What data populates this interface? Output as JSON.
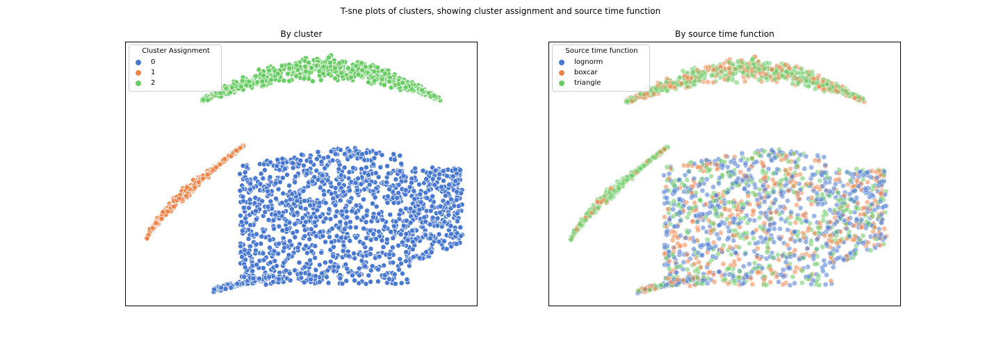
{
  "suptitle": "T-sne plots of clusters, showing cluster assignment and source time function",
  "colors": {
    "blue": "#4878d0",
    "orange": "#ee854a",
    "green": "#6acc64"
  },
  "chart_data": [
    {
      "type": "scatter",
      "title": "By cluster",
      "xlabel": "",
      "ylabel": "",
      "grid": false,
      "legend_position": "top-left",
      "legend_title": "Cluster Assignment",
      "series": [
        {
          "name": "0",
          "color": "#4878d0",
          "region": "large lower-right blob with tail to lower-left"
        },
        {
          "name": "1",
          "color": "#ee854a",
          "region": "curved arc on the left"
        },
        {
          "name": "2",
          "color": "#6acc64",
          "region": "arc at the top"
        }
      ]
    },
    {
      "type": "scatter",
      "title": "By source time function",
      "xlabel": "",
      "ylabel": "",
      "grid": false,
      "legend_position": "top-left",
      "legend_title": "Source time function",
      "series": [
        {
          "name": "lognorm",
          "color": "#4878d0"
        },
        {
          "name": "boxcar",
          "color": "#ee854a"
        },
        {
          "name": "triangle",
          "color": "#6acc64"
        }
      ]
    }
  ]
}
